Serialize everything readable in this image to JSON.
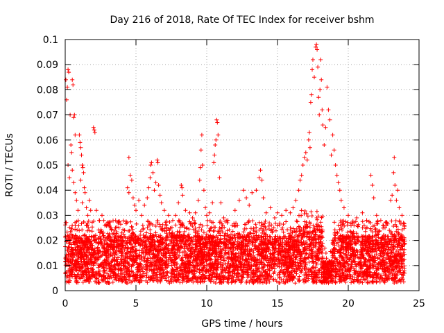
{
  "chart_data": {
    "type": "scatter",
    "title": "Day 216 of 2018, Rate Of TEC Index for receiver bshm",
    "xlabel": "GPS time / hours",
    "ylabel": "ROTI / TECUs",
    "xlim": [
      0,
      25
    ],
    "ylim": [
      0,
      0.1
    ],
    "x_ticks": [
      0,
      5,
      10,
      15,
      20,
      25
    ],
    "x_tick_labels": [
      "0",
      "5",
      "10",
      "15",
      "20",
      "25"
    ],
    "y_ticks": [
      0,
      0.01,
      0.02,
      0.03,
      0.04,
      0.05,
      0.06,
      0.07,
      0.08,
      0.09,
      0.1
    ],
    "y_tick_labels": [
      "0",
      "0.01",
      "0.02",
      "0.03",
      "0.04",
      "0.05",
      "0.06",
      "0.07",
      "0.08",
      "0.09",
      "0.1"
    ],
    "grid": true,
    "marker": "+",
    "series": [
      {
        "name": "ROTI",
        "color": "#ff0000",
        "dense_band": {
          "x_range": [
            0,
            24
          ],
          "typical_min": 0.003,
          "typical_max": 0.022
        },
        "outliers": [
          [
            0.05,
            0.084
          ],
          [
            0.1,
            0.076
          ],
          [
            0.15,
            0.081
          ],
          [
            0.2,
            0.088
          ],
          [
            0.25,
            0.087
          ],
          [
            0.35,
            0.07
          ],
          [
            0.4,
            0.058
          ],
          [
            0.45,
            0.055
          ],
          [
            0.2,
            0.05
          ],
          [
            0.3,
            0.045
          ],
          [
            0.5,
            0.084
          ],
          [
            0.55,
            0.082
          ],
          [
            0.6,
            0.069
          ],
          [
            0.65,
            0.07
          ],
          [
            0.7,
            0.062
          ],
          [
            0.5,
            0.048
          ],
          [
            0.6,
            0.043
          ],
          [
            0.8,
            0.036
          ],
          [
            0.9,
            0.032
          ],
          [
            0.7,
            0.039
          ],
          [
            1.0,
            0.062
          ],
          [
            1.05,
            0.059
          ],
          [
            1.1,
            0.057
          ],
          [
            1.15,
            0.054
          ],
          [
            1.2,
            0.05
          ],
          [
            1.25,
            0.049
          ],
          [
            1.3,
            0.047
          ],
          [
            1.1,
            0.044
          ],
          [
            1.35,
            0.041
          ],
          [
            1.4,
            0.039
          ],
          [
            1.2,
            0.035
          ],
          [
            1.5,
            0.033
          ],
          [
            1.6,
            0.03
          ],
          [
            1.7,
            0.036
          ],
          [
            1.8,
            0.032
          ],
          [
            2.0,
            0.065
          ],
          [
            2.1,
            0.063
          ],
          [
            2.05,
            0.064
          ],
          [
            2.2,
            0.032
          ],
          [
            2.4,
            0.028
          ],
          [
            2.6,
            0.03
          ],
          [
            2.8,
            0.026
          ],
          [
            3.0,
            0.027
          ],
          [
            3.2,
            0.025
          ],
          [
            3.5,
            0.024
          ],
          [
            3.8,
            0.025
          ],
          [
            4.0,
            0.023
          ],
          [
            4.2,
            0.024
          ],
          [
            4.5,
            0.053
          ],
          [
            4.6,
            0.046
          ],
          [
            4.4,
            0.041
          ],
          [
            4.5,
            0.039
          ],
          [
            4.7,
            0.044
          ],
          [
            4.8,
            0.037
          ],
          [
            4.9,
            0.034
          ],
          [
            5.0,
            0.032
          ],
          [
            5.2,
            0.036
          ],
          [
            5.4,
            0.03
          ],
          [
            5.6,
            0.034
          ],
          [
            5.8,
            0.037
          ],
          [
            5.9,
            0.041
          ],
          [
            6.0,
            0.045
          ],
          [
            6.05,
            0.05
          ],
          [
            6.1,
            0.051
          ],
          [
            6.2,
            0.047
          ],
          [
            6.3,
            0.04
          ],
          [
            6.4,
            0.043
          ],
          [
            6.5,
            0.052
          ],
          [
            6.55,
            0.051
          ],
          [
            6.6,
            0.042
          ],
          [
            6.7,
            0.038
          ],
          [
            6.8,
            0.035
          ],
          [
            7.0,
            0.032
          ],
          [
            7.3,
            0.03
          ],
          [
            7.6,
            0.028
          ],
          [
            7.8,
            0.03
          ],
          [
            8.0,
            0.035
          ],
          [
            8.2,
            0.042
          ],
          [
            8.25,
            0.041
          ],
          [
            8.3,
            0.038
          ],
          [
            8.5,
            0.032
          ],
          [
            8.8,
            0.031
          ],
          [
            9.0,
            0.029
          ],
          [
            9.2,
            0.031
          ],
          [
            9.4,
            0.036
          ],
          [
            9.5,
            0.044
          ],
          [
            9.55,
            0.049
          ],
          [
            9.6,
            0.056
          ],
          [
            9.65,
            0.062
          ],
          [
            9.7,
            0.05
          ],
          [
            9.8,
            0.04
          ],
          [
            9.9,
            0.033
          ],
          [
            10.0,
            0.03
          ],
          [
            10.2,
            0.031
          ],
          [
            10.4,
            0.035
          ],
          [
            10.5,
            0.051
          ],
          [
            10.55,
            0.054
          ],
          [
            10.6,
            0.058
          ],
          [
            10.65,
            0.06
          ],
          [
            10.7,
            0.068
          ],
          [
            10.75,
            0.067
          ],
          [
            10.8,
            0.062
          ],
          [
            10.9,
            0.045
          ],
          [
            11.0,
            0.035
          ],
          [
            11.2,
            0.029
          ],
          [
            11.5,
            0.028
          ],
          [
            11.8,
            0.026
          ],
          [
            12.0,
            0.032
          ],
          [
            12.3,
            0.036
          ],
          [
            12.6,
            0.04
          ],
          [
            12.8,
            0.037
          ],
          [
            13.0,
            0.034
          ],
          [
            13.2,
            0.039
          ],
          [
            13.5,
            0.04
          ],
          [
            13.7,
            0.045
          ],
          [
            13.8,
            0.048
          ],
          [
            13.9,
            0.044
          ],
          [
            14.0,
            0.037
          ],
          [
            14.2,
            0.031
          ],
          [
            14.5,
            0.033
          ],
          [
            14.8,
            0.029
          ],
          [
            15.0,
            0.031
          ],
          [
            15.3,
            0.03
          ],
          [
            15.6,
            0.032
          ],
          [
            15.9,
            0.031
          ],
          [
            16.1,
            0.033
          ],
          [
            16.3,
            0.036
          ],
          [
            16.5,
            0.04
          ],
          [
            16.6,
            0.044
          ],
          [
            16.7,
            0.046
          ],
          [
            16.8,
            0.05
          ],
          [
            16.9,
            0.053
          ],
          [
            17.0,
            0.055
          ],
          [
            17.1,
            0.052
          ],
          [
            17.2,
            0.06
          ],
          [
            17.25,
            0.063
          ],
          [
            17.3,
            0.057
          ],
          [
            17.35,
            0.075
          ],
          [
            17.4,
            0.078
          ],
          [
            17.45,
            0.088
          ],
          [
            17.5,
            0.092
          ],
          [
            17.6,
            0.085
          ],
          [
            17.7,
            0.097
          ],
          [
            17.75,
            0.098
          ],
          [
            17.8,
            0.096
          ],
          [
            17.85,
            0.089
          ],
          [
            17.9,
            0.077
          ],
          [
            17.95,
            0.07
          ],
          [
            18.0,
            0.08
          ],
          [
            18.05,
            0.092
          ],
          [
            18.1,
            0.084
          ],
          [
            18.15,
            0.072
          ],
          [
            18.2,
            0.066
          ],
          [
            18.3,
            0.058
          ],
          [
            18.4,
            0.065
          ],
          [
            18.5,
            0.081
          ],
          [
            18.6,
            0.072
          ],
          [
            18.7,
            0.068
          ],
          [
            18.8,
            0.054
          ],
          [
            18.9,
            0.062
          ],
          [
            19.0,
            0.056
          ],
          [
            19.1,
            0.05
          ],
          [
            19.2,
            0.046
          ],
          [
            19.3,
            0.043
          ],
          [
            19.4,
            0.04
          ],
          [
            19.5,
            0.036
          ],
          [
            19.7,
            0.033
          ],
          [
            20.0,
            0.03
          ],
          [
            20.3,
            0.027
          ],
          [
            20.6,
            0.029
          ],
          [
            21.0,
            0.031
          ],
          [
            21.3,
            0.028
          ],
          [
            21.6,
            0.046
          ],
          [
            21.7,
            0.042
          ],
          [
            21.8,
            0.037
          ],
          [
            22.0,
            0.03
          ],
          [
            22.3,
            0.028
          ],
          [
            22.6,
            0.025
          ],
          [
            22.9,
            0.024
          ],
          [
            23.0,
            0.036
          ],
          [
            23.1,
            0.038
          ],
          [
            23.2,
            0.047
          ],
          [
            23.25,
            0.053
          ],
          [
            23.3,
            0.042
          ],
          [
            23.4,
            0.036
          ],
          [
            23.5,
            0.04
          ],
          [
            23.6,
            0.033
          ],
          [
            23.8,
            0.03
          ],
          [
            23.9,
            0.027
          ]
        ]
      }
    ]
  }
}
